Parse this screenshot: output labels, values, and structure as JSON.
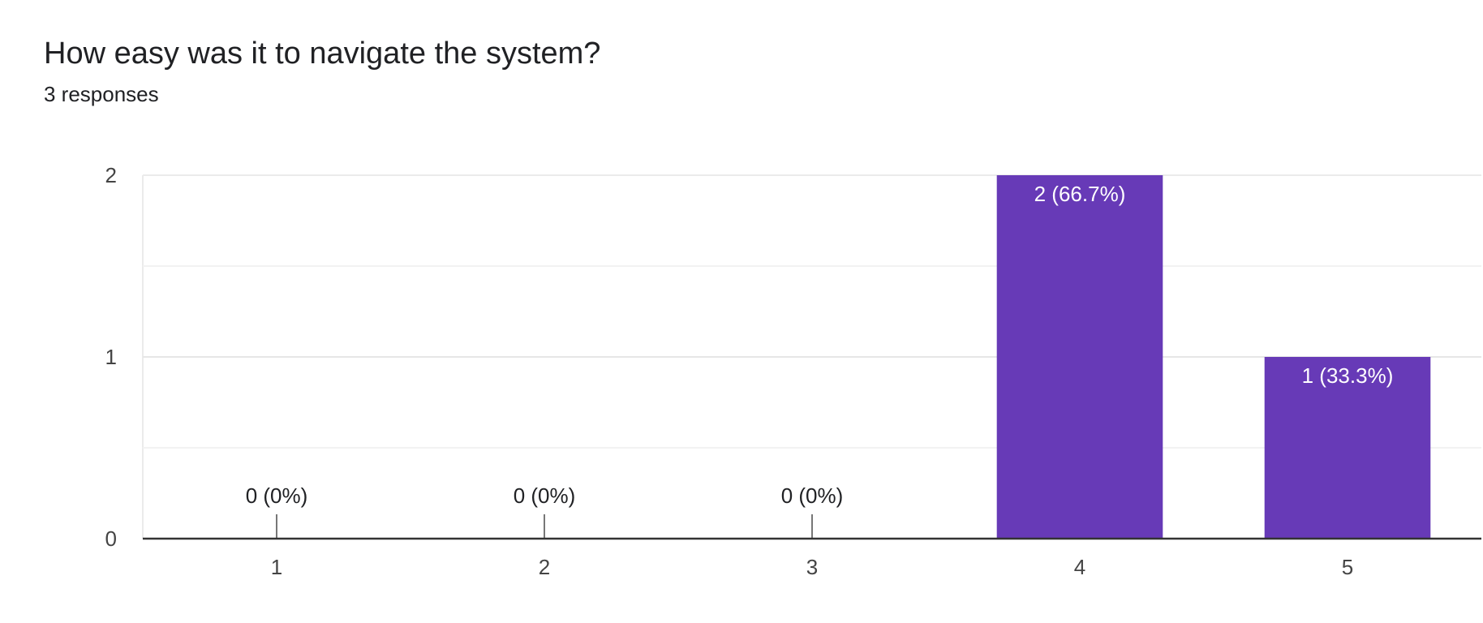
{
  "question": {
    "title": "How easy was it to navigate the system?",
    "responses": "3 responses"
  },
  "colors": {
    "bar": "#673ab7",
    "grid": "#ebebeb",
    "axis": "#333333",
    "text": "#202124",
    "tick": "#444444",
    "label_inside": "#ffffff"
  },
  "chart_data": {
    "type": "bar",
    "title": "",
    "xlabel": "",
    "ylabel": "",
    "categories": [
      "1",
      "2",
      "3",
      "4",
      "5"
    ],
    "values": [
      0,
      0,
      0,
      2,
      1
    ],
    "data_labels": [
      "0 (0%)",
      "0 (0%)",
      "0 (0%)",
      "2 (66.7%)",
      "1 (33.3%)"
    ],
    "y_ticks": [
      "0",
      "1",
      "2"
    ],
    "ylim": [
      0,
      2
    ],
    "grid": true,
    "legend": "none"
  }
}
